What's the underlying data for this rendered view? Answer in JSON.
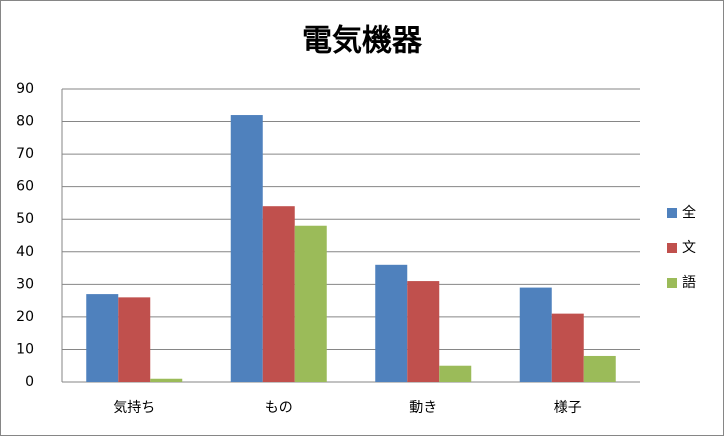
{
  "chart_data": {
    "type": "bar",
    "title": "電気機器",
    "categories": [
      "気持ち",
      "もの",
      "動き",
      "様子"
    ],
    "series": [
      {
        "name": "全",
        "color": "#4f81bd",
        "values": [
          27,
          82,
          36,
          29
        ]
      },
      {
        "name": "文",
        "color": "#c0504d",
        "values": [
          26,
          54,
          31,
          21
        ]
      },
      {
        "name": "語",
        "color": "#9bbb59",
        "values": [
          1,
          48,
          5,
          8
        ]
      }
    ],
    "ylim": [
      0,
      90
    ],
    "yticks": [
      0,
      10,
      20,
      30,
      40,
      50,
      60,
      70,
      80,
      90
    ],
    "grid": true,
    "legend": "right"
  }
}
